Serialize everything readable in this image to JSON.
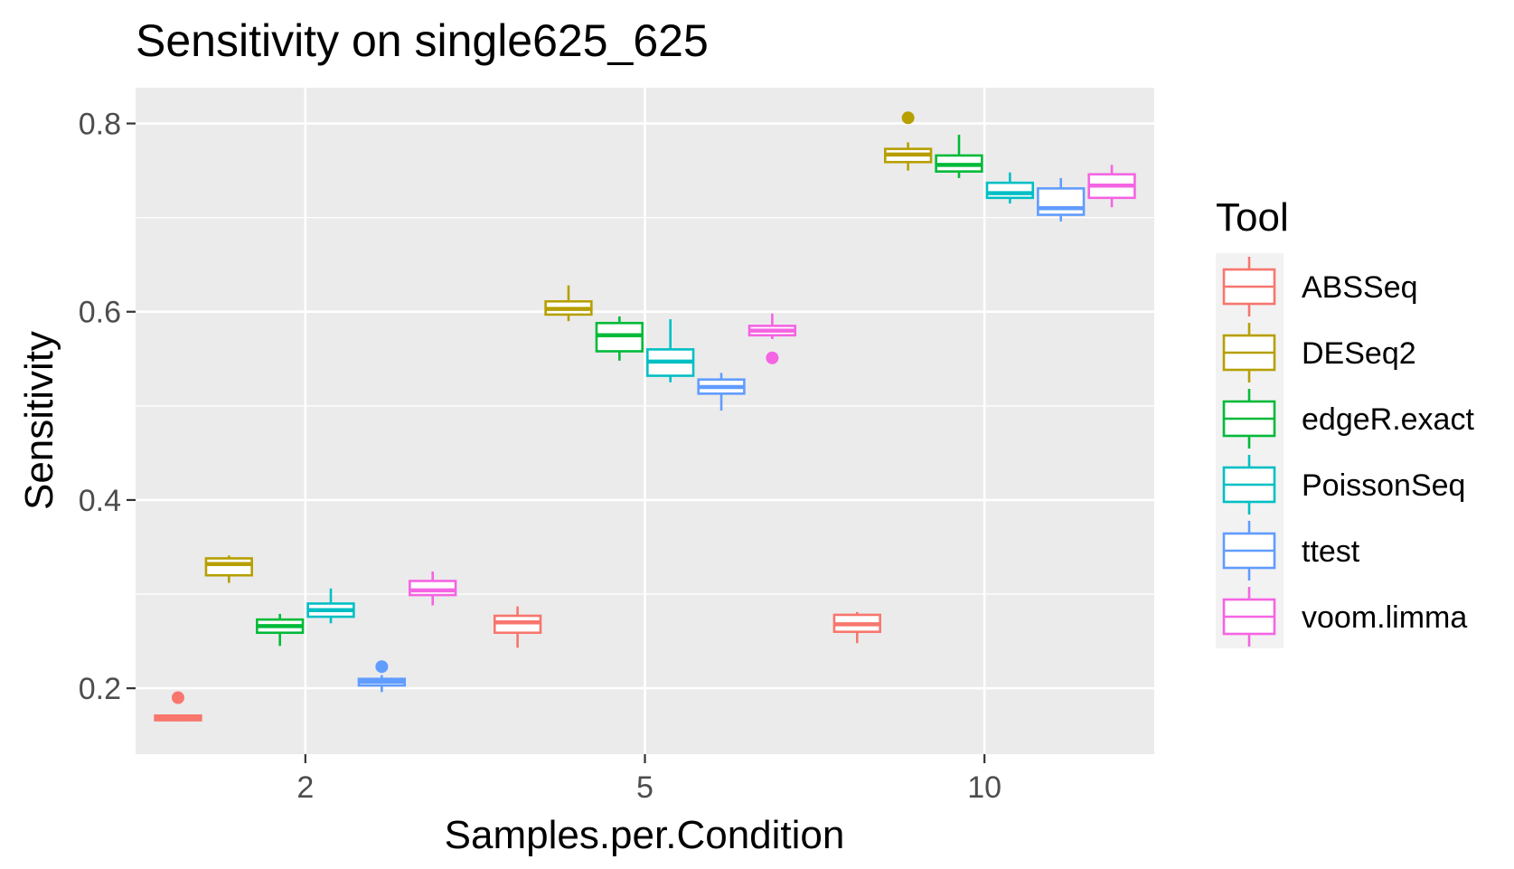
{
  "chart_data": {
    "type": "boxplot",
    "title": "Sensitivity on single625_625",
    "xlabel": "Samples.per.Condition",
    "ylabel": "Sensitivity",
    "categories": [
      "2",
      "5",
      "10"
    ],
    "yticks": [
      "0.2",
      "0.4",
      "0.6",
      "0.8"
    ],
    "ylim": [
      0.13,
      0.838
    ],
    "grid": true,
    "background": "#EBEBEB",
    "legend": {
      "title": "Tool",
      "position": "right"
    },
    "series": [
      {
        "name": "ABSSeq",
        "color": "#F8766D",
        "boxes": [
          {
            "min": 0.165,
            "q1": 0.166,
            "median": 0.168,
            "q3": 0.171,
            "max": 0.172,
            "outliers": [
              0.19
            ]
          },
          {
            "min": 0.243,
            "q1": 0.259,
            "median": 0.27,
            "q3": 0.277,
            "max": 0.287,
            "outliers": []
          },
          {
            "min": 0.248,
            "q1": 0.26,
            "median": 0.268,
            "q3": 0.278,
            "max": 0.281,
            "outliers": []
          }
        ]
      },
      {
        "name": "DESeq2",
        "color": "#B79F00",
        "boxes": [
          {
            "min": 0.312,
            "q1": 0.32,
            "median": 0.332,
            "q3": 0.338,
            "max": 0.341,
            "outliers": []
          },
          {
            "min": 0.59,
            "q1": 0.597,
            "median": 0.603,
            "q3": 0.611,
            "max": 0.628,
            "outliers": []
          },
          {
            "min": 0.75,
            "q1": 0.759,
            "median": 0.767,
            "q3": 0.773,
            "max": 0.78,
            "outliers": [
              0.806
            ]
          }
        ]
      },
      {
        "name": "edgeR.exact",
        "color": "#00BA38",
        "boxes": [
          {
            "min": 0.245,
            "q1": 0.259,
            "median": 0.266,
            "q3": 0.273,
            "max": 0.279,
            "outliers": []
          },
          {
            "min": 0.548,
            "q1": 0.558,
            "median": 0.575,
            "q3": 0.588,
            "max": 0.595,
            "outliers": []
          },
          {
            "min": 0.742,
            "q1": 0.749,
            "median": 0.756,
            "q3": 0.766,
            "max": 0.788,
            "outliers": []
          }
        ]
      },
      {
        "name": "PoissonSeq",
        "color": "#00BFC4",
        "boxes": [
          {
            "min": 0.269,
            "q1": 0.276,
            "median": 0.283,
            "q3": 0.29,
            "max": 0.306,
            "outliers": []
          },
          {
            "min": 0.525,
            "q1": 0.532,
            "median": 0.547,
            "q3": 0.56,
            "max": 0.592,
            "outliers": []
          },
          {
            "min": 0.715,
            "q1": 0.721,
            "median": 0.726,
            "q3": 0.737,
            "max": 0.748,
            "outliers": []
          }
        ]
      },
      {
        "name": "ttest",
        "color": "#619CFF",
        "boxes": [
          {
            "min": 0.196,
            "q1": 0.203,
            "median": 0.207,
            "q3": 0.21,
            "max": 0.214,
            "outliers": [
              0.223
            ]
          },
          {
            "min": 0.495,
            "q1": 0.513,
            "median": 0.52,
            "q3": 0.528,
            "max": 0.535,
            "outliers": []
          },
          {
            "min": 0.696,
            "q1": 0.703,
            "median": 0.71,
            "q3": 0.731,
            "max": 0.742,
            "outliers": []
          }
        ]
      },
      {
        "name": "voom.limma",
        "color": "#F564E3",
        "boxes": [
          {
            "min": 0.288,
            "q1": 0.299,
            "median": 0.304,
            "q3": 0.314,
            "max": 0.324,
            "outliers": []
          },
          {
            "min": 0.571,
            "q1": 0.575,
            "median": 0.58,
            "q3": 0.585,
            "max": 0.598,
            "outliers": [
              0.551
            ]
          },
          {
            "min": 0.711,
            "q1": 0.721,
            "median": 0.734,
            "q3": 0.746,
            "max": 0.756,
            "outliers": []
          }
        ]
      }
    ]
  }
}
